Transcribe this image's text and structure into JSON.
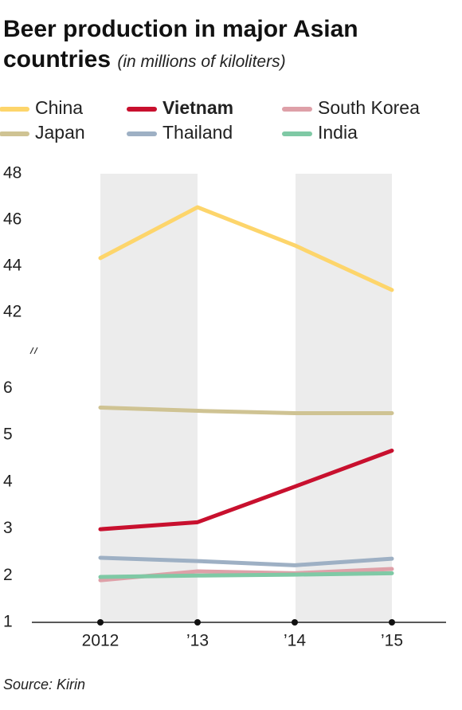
{
  "chart_data": [
    {
      "type": "line",
      "title": "Beer production in major Asian countries",
      "subtitle": "(in millions of kiloliters)",
      "series": [
        {
          "name": "China",
          "color": "#fdd56b",
          "values": [
            44.35,
            46.55,
            44.9,
            42.97
          ]
        }
      ],
      "ylim": [
        41,
        48
      ],
      "yticks": [
        42,
        44,
        46,
        48
      ]
    },
    {
      "type": "line",
      "categories": [
        "2012",
        "’13",
        "’14",
        "’15"
      ],
      "series": [
        {
          "name": "Vietnam",
          "color": "#c8102e",
          "bold": true,
          "values": [
            2.99,
            3.14,
            3.9,
            4.67
          ]
        },
        {
          "name": "South Korea",
          "color": "#dea0a8",
          "values": [
            1.9,
            2.09,
            2.05,
            2.14
          ]
        },
        {
          "name": "Japan",
          "color": "#cfc393",
          "values": [
            5.59,
            5.52,
            5.47,
            5.47
          ]
        },
        {
          "name": "Thailand",
          "color": "#9eb0c4",
          "values": [
            2.38,
            2.31,
            2.22,
            2.36
          ]
        },
        {
          "name": "India",
          "color": "#7fc9a5",
          "values": [
            1.97,
            2.0,
            2.02,
            2.05
          ]
        }
      ],
      "ylim": [
        1,
        6.5
      ],
      "yticks": [
        1,
        2,
        3,
        4,
        5,
        6
      ],
      "source": "Source: Kirin"
    }
  ]
}
